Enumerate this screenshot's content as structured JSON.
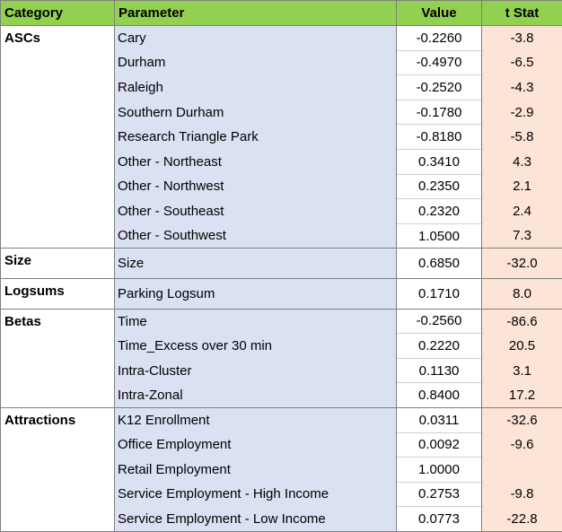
{
  "headers": {
    "category": "Category",
    "parameter": "Parameter",
    "value": "Value",
    "tstat": "t Stat"
  },
  "groups": [
    {
      "category": "ASCs",
      "rows": [
        {
          "parameter": "Cary",
          "value": "-0.2260",
          "tstat": "-3.8"
        },
        {
          "parameter": "Durham",
          "value": "-0.4970",
          "tstat": "-6.5"
        },
        {
          "parameter": "Raleigh",
          "value": "-0.2520",
          "tstat": "-4.3"
        },
        {
          "parameter": "Southern Durham",
          "value": "-0.1780",
          "tstat": "-2.9"
        },
        {
          "parameter": "Research Triangle Park",
          "value": "-0.8180",
          "tstat": "-5.8"
        },
        {
          "parameter": "Other - Northeast",
          "value": "0.3410",
          "tstat": "4.3"
        },
        {
          "parameter": "Other - Northwest",
          "value": "0.2350",
          "tstat": "2.1"
        },
        {
          "parameter": "Other - Southeast",
          "value": "0.2320",
          "tstat": "2.4"
        },
        {
          "parameter": "Other - Southwest",
          "value": "1.0500",
          "tstat": "7.3"
        }
      ]
    },
    {
      "category": "Size",
      "rows": [
        {
          "parameter": "Size",
          "value": "0.6850",
          "tstat": "-32.0"
        }
      ]
    },
    {
      "category": "Logsums",
      "rows": [
        {
          "parameter": "Parking Logsum",
          "value": "0.1710",
          "tstat": "8.0"
        }
      ]
    },
    {
      "category": "Betas",
      "rows": [
        {
          "parameter": "Time",
          "value": "-0.2560",
          "tstat": "-86.6"
        },
        {
          "parameter": "Time_Excess over 30 min",
          "value": "0.2220",
          "tstat": "20.5"
        },
        {
          "parameter": "Intra-Cluster",
          "value": "0.1130",
          "tstat": "3.1"
        },
        {
          "parameter": "Intra-Zonal",
          "value": "0.8400",
          "tstat": "17.2"
        }
      ]
    },
    {
      "category": "Attractions",
      "rows": [
        {
          "parameter": "K12 Enrollment",
          "value": "0.0311",
          "tstat": "-32.6"
        },
        {
          "parameter": "Office Employment",
          "value": "0.0092",
          "tstat": "-9.6"
        },
        {
          "parameter": "Retail Employment",
          "value": "1.0000",
          "tstat": ""
        },
        {
          "parameter": "Service  Employment - High Income",
          "value": "0.2753",
          "tstat": "-9.8"
        },
        {
          "parameter": "Service  Employment - Low Income",
          "value": "0.0773",
          "tstat": "-22.8"
        }
      ]
    }
  ]
}
